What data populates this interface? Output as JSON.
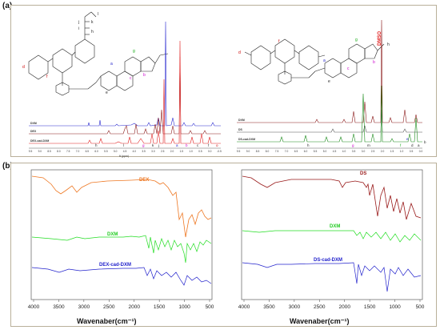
{
  "panels": {
    "a": {
      "label": "(a)"
    },
    "b": {
      "label": "(b)"
    }
  },
  "nmr_left": {
    "traces": [
      {
        "name": "DXM",
        "color": "#2a2ad0"
      },
      {
        "name": "DEX",
        "color": "#8b1a1a"
      },
      {
        "name": "DEX-cad-DXM",
        "color": "#e02020"
      }
    ],
    "ppm_ticks": [
      "9.5",
      "9.0",
      "8.5",
      "8.0",
      "7.5",
      "7.0",
      "6.5",
      "6.0",
      "5.5",
      "5.0",
      "4.5",
      "4.0",
      "3.5",
      "3.0",
      "2.5",
      "2.0",
      "1.5",
      "1.0",
      "0.5",
      "0.0",
      "-0.5"
    ],
    "peak_letters": [
      "h",
      "l",
      "g",
      "k",
      "j",
      "a",
      "b",
      "c",
      "f",
      "o"
    ],
    "axis_unit": "ft (ppm)"
  },
  "nmr_right": {
    "traces": [
      {
        "name": "DXM",
        "color": "#8b1a1a"
      },
      {
        "name": "DS",
        "color": "#555555"
      },
      {
        "name": "DS-cad-DXM",
        "color": "#1a8a1a"
      }
    ],
    "solvent_label": "DMSO",
    "peak_letters": [
      "h",
      "g",
      "m",
      "f",
      "e",
      "d",
      "a",
      "b"
    ],
    "ppm_ticks": [
      "9.5",
      "9.0",
      "8.5",
      "8.0",
      "7.5",
      "7.0",
      "6.5",
      "6.0",
      "5.5",
      "5.0",
      "4.5",
      "4.0",
      "3.5",
      "3.0",
      "2.5",
      "2.0",
      "1.5",
      "1.0",
      "0.5",
      "0.0"
    ]
  },
  "ir_left": {
    "traces": [
      {
        "name": "DEX",
        "color": "#ee7722"
      },
      {
        "name": "DXM",
        "color": "#22dd22"
      },
      {
        "name": "DEX-cad-DXM",
        "color": "#2222cc"
      }
    ],
    "x_ticks": [
      "4000",
      "3500",
      "3000",
      "2500",
      "2000",
      "1500",
      "1000",
      "500"
    ],
    "xlabel": "Wavenaber(cm⁻¹)"
  },
  "ir_right": {
    "traces": [
      {
        "name": "DS",
        "color": "#991a1a"
      },
      {
        "name": "DXM",
        "color": "#22dd22"
      },
      {
        "name": "DS-cad-DXM",
        "color": "#2222cc"
      }
    ],
    "x_ticks": [
      "4000",
      "3500",
      "3000",
      "2500",
      "2000",
      "1500",
      "1000",
      "500"
    ],
    "xlabel": "Wavenaber(cm⁻¹)"
  }
}
